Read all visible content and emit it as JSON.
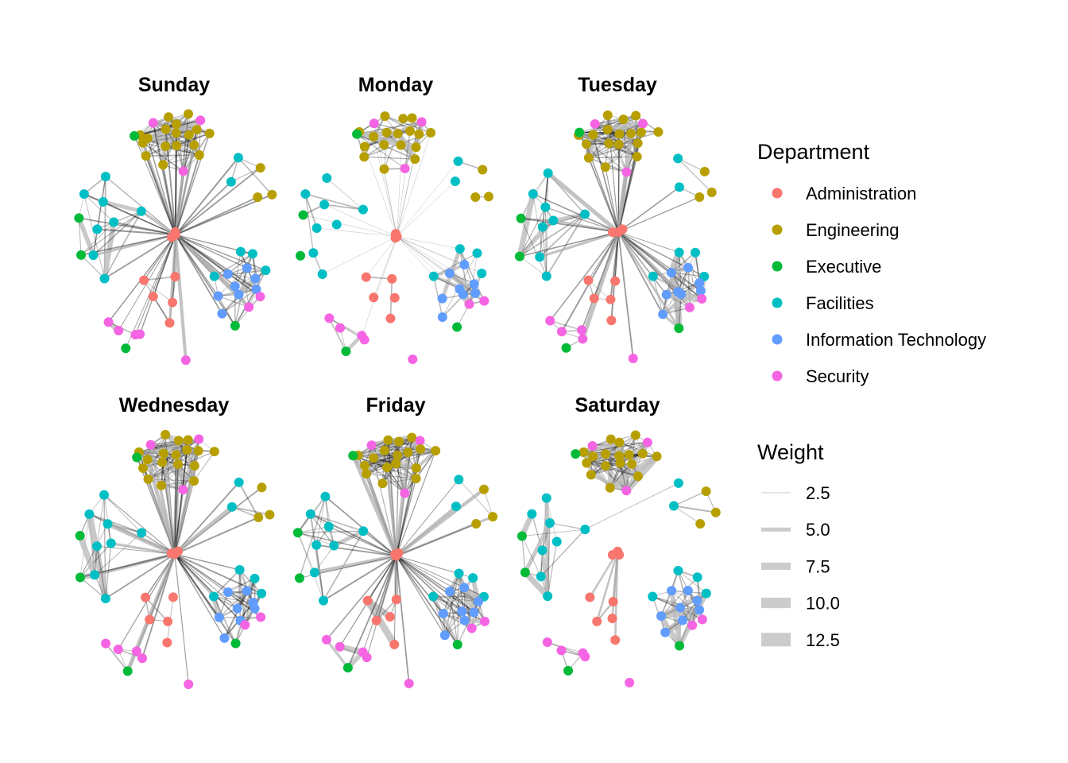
{
  "legend": {
    "department_title": "Department",
    "departments": [
      {
        "name": "Administration",
        "color": "#F8766D"
      },
      {
        "name": "Engineering",
        "color": "#B79F00"
      },
      {
        "name": "Executive",
        "color": "#00BA38"
      },
      {
        "name": "Facilities",
        "color": "#00BFC4"
      },
      {
        "name": "Information Technology",
        "color": "#619CFF"
      },
      {
        "name": "Security",
        "color": "#F564E3"
      }
    ],
    "weight_title": "Weight",
    "weights": [
      "2.5",
      "5.0",
      "7.5",
      "10.0",
      "12.5"
    ]
  },
  "edge_color": "#000000",
  "weight_key_color": "#cccccc",
  "panels": [
    {
      "title": "Sunday",
      "hub_links": "heavy",
      "cluster_links": "dense"
    },
    {
      "title": "Monday",
      "hub_links": "light",
      "cluster_links": "sparse"
    },
    {
      "title": "Tuesday",
      "hub_links": "medium",
      "cluster_links": "dense"
    },
    {
      "title": "Wednesday",
      "hub_links": "heavy",
      "cluster_links": "dense"
    },
    {
      "title": "Friday",
      "hub_links": "heavy",
      "cluster_links": "dense"
    },
    {
      "title": "Saturday",
      "hub_links": "none",
      "cluster_links": "dense"
    }
  ]
}
